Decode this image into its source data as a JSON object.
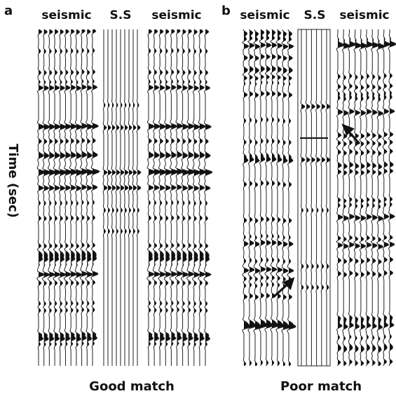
{
  "panels": [
    {
      "label": "a",
      "columns": [
        "seismic",
        "S.S",
        "seismic"
      ],
      "caption": "Good match"
    },
    {
      "label": "b",
      "columns": [
        "seismic",
        "S.S",
        "seismic"
      ],
      "caption": "Poor match"
    }
  ],
  "axis_label": "Time (sec)"
}
